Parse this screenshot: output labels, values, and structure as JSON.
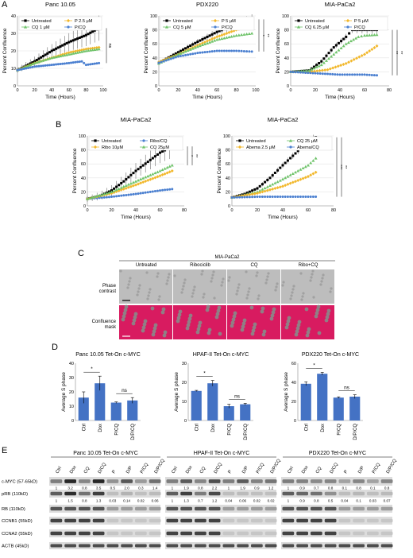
{
  "panels": {
    "A": "A",
    "B": "B",
    "C": "C",
    "D": "D",
    "E": "E"
  },
  "colors": {
    "untreated": "#000000",
    "palbo": "#f2b82c",
    "cq": "#6fc36a",
    "combo": "#4a7fd0",
    "bar": "#4472c4",
    "mask": "#d81b60",
    "phase_bg": "#bdbdbd"
  },
  "chart_data": [
    {
      "id": "A1",
      "type": "line",
      "title": "Panc 10.05",
      "xlabel": "Time (Hours)",
      "ylabel": "Percent Confluence",
      "xlim": [
        0,
        100
      ],
      "ylim": [
        0,
        40
      ],
      "xticks": [
        0,
        20,
        40,
        60,
        80,
        100
      ],
      "yticks": [
        0,
        10,
        20,
        30,
        40
      ],
      "legend": [
        "Untreated",
        "P 2.5 μM",
        "CQ 1 μM",
        "P/CQ"
      ],
      "series": [
        {
          "name": "Untreated",
          "x": [
            0,
            20,
            40,
            60,
            80,
            95
          ],
          "y": [
            9,
            14,
            20,
            25,
            29,
            33
          ]
        },
        {
          "name": "P 2.5 μM",
          "x": [
            0,
            20,
            40,
            60,
            80,
            95
          ],
          "y": [
            9,
            13,
            16,
            19,
            21,
            22
          ]
        },
        {
          "name": "CQ 1 μM",
          "x": [
            0,
            20,
            40,
            60,
            80,
            95
          ],
          "y": [
            9,
            13,
            16,
            18,
            20,
            21
          ]
        },
        {
          "name": "P/CQ",
          "x": [
            0,
            20,
            40,
            60,
            75,
            80,
            95
          ],
          "y": [
            9,
            11,
            12,
            13,
            14,
            12,
            13
          ]
        }
      ],
      "annotations": [
        "ns"
      ]
    },
    {
      "id": "A2",
      "type": "line",
      "title": "PDX220",
      "xlabel": "Time (Hours)",
      "ylabel": "Percent Confluence",
      "xlim": [
        0,
        100
      ],
      "ylim": [
        0,
        100
      ],
      "xticks": [
        0,
        20,
        40,
        60,
        80,
        100
      ],
      "yticks": [
        0,
        20,
        40,
        60,
        80,
        100
      ],
      "legend": [
        "Untreated",
        "P 5 μM",
        "CQ 5 μM",
        "P/CQ"
      ],
      "series": [
        {
          "name": "Untreated",
          "x": [
            0,
            20,
            40,
            60,
            80,
            96
          ],
          "y": [
            33,
            48,
            63,
            77,
            88,
            95
          ]
        },
        {
          "name": "P 5 μM",
          "x": [
            0,
            20,
            40,
            60,
            80,
            96
          ],
          "y": [
            34,
            45,
            58,
            70,
            80,
            86
          ]
        },
        {
          "name": "CQ 5 μM",
          "x": [
            0,
            20,
            40,
            60,
            80,
            96
          ],
          "y": [
            32,
            45,
            56,
            66,
            72,
            75
          ]
        },
        {
          "name": "P/CQ",
          "x": [
            0,
            20,
            40,
            60,
            80,
            96
          ],
          "y": [
            33,
            42,
            47,
            50,
            50,
            49
          ]
        }
      ],
      "annotations": [
        "*",
        "**"
      ]
    },
    {
      "id": "A3",
      "type": "line",
      "title": "MIA-PaCa2",
      "xlabel": "Time (Hours)",
      "ylabel": "Percent Confluence",
      "xlim": [
        0,
        80
      ],
      "ylim": [
        0,
        100
      ],
      "xticks": [
        0,
        20,
        40,
        60,
        80
      ],
      "yticks": [
        0,
        20,
        40,
        60,
        80,
        100
      ],
      "legend": [
        "Untreated",
        "P 5 μM",
        "CQ 6.25 μM",
        "P/CQ"
      ],
      "series": [
        {
          "name": "Untreated",
          "x": [
            0,
            15,
            25,
            35,
            45,
            50,
            60,
            70
          ],
          "y": [
            20,
            22,
            35,
            55,
            70,
            80,
            80,
            80
          ]
        },
        {
          "name": "P 5 μM",
          "x": [
            0,
            15,
            30,
            45,
            60,
            70
          ],
          "y": [
            20,
            20,
            23,
            32,
            45,
            57
          ]
        },
        {
          "name": "CQ 6.25 μM",
          "x": [
            0,
            15,
            25,
            35,
            45,
            55,
            60,
            70
          ],
          "y": [
            20,
            22,
            30,
            45,
            60,
            70,
            72,
            73
          ]
        },
        {
          "name": "P/CQ",
          "x": [
            0,
            20,
            40,
            60,
            70
          ],
          "y": [
            20,
            18,
            16,
            16,
            15
          ]
        }
      ],
      "annotations": [
        "**",
        "**"
      ]
    },
    {
      "id": "B1",
      "type": "line",
      "title": "MIA-PaCa2",
      "xlabel": "Time (Hours)",
      "ylabel": "Percent Confluence",
      "xlim": [
        0,
        80
      ],
      "ylim": [
        0,
        100
      ],
      "xticks": [
        0,
        20,
        40,
        60,
        80
      ],
      "yticks": [
        0,
        20,
        40,
        60,
        80,
        100
      ],
      "legend": [
        "Untreated",
        "Ribo/CQ",
        "Ribo 10μM",
        "CQ 25μM"
      ],
      "series": [
        {
          "name": "Untreated",
          "x": [
            0,
            10,
            20,
            30,
            40,
            50,
            60,
            70
          ],
          "y": [
            10,
            14,
            22,
            35,
            50,
            63,
            76,
            85
          ]
        },
        {
          "name": "Ribo/CQ",
          "x": [
            0,
            20,
            40,
            60,
            70
          ],
          "y": [
            10,
            13,
            17,
            22,
            24
          ]
        },
        {
          "name": "Ribo 10μM",
          "x": [
            0,
            20,
            40,
            60,
            70
          ],
          "y": [
            10,
            18,
            30,
            43,
            50
          ]
        },
        {
          "name": "CQ 25μM",
          "x": [
            0,
            20,
            40,
            60,
            70
          ],
          "y": [
            10,
            20,
            35,
            50,
            58
          ]
        }
      ],
      "annotations": [
        "*",
        "**"
      ]
    },
    {
      "id": "B2",
      "type": "line",
      "title": "MIA-PaCa2",
      "xlabel": "Time (Hours)",
      "ylabel": "Percent Confluence",
      "xlim": [
        0,
        80
      ],
      "ylim": [
        0,
        100
      ],
      "xticks": [
        0,
        20,
        40,
        60,
        80
      ],
      "yticks": [
        0,
        20,
        40,
        60,
        80,
        100
      ],
      "legend": [
        "Untreated",
        "CQ 25 μM",
        "Abema 2.5 μM",
        "Abema/CQ"
      ],
      "series": [
        {
          "name": "Untreated",
          "x": [
            0,
            10,
            20,
            30,
            40,
            50,
            60,
            66
          ],
          "y": [
            12,
            17,
            25,
            40,
            58,
            75,
            93,
            98
          ]
        },
        {
          "name": "CQ 25 μM",
          "x": [
            0,
            20,
            40,
            60,
            66
          ],
          "y": [
            12,
            20,
            38,
            58,
            68
          ]
        },
        {
          "name": "Abema 2.5 μM",
          "x": [
            0,
            20,
            40,
            60,
            66
          ],
          "y": [
            12,
            18,
            28,
            42,
            48
          ]
        },
        {
          "name": "Abema/CQ",
          "x": [
            0,
            20,
            40,
            60,
            66
          ],
          "y": [
            12,
            13,
            13,
            13,
            13
          ]
        }
      ],
      "annotations": [
        "***",
        "**"
      ]
    },
    {
      "id": "D1",
      "type": "bar",
      "title": "Panc 10.05 Tet-On c-MYC",
      "ylabel": "Average S phase",
      "ylim": [
        0,
        40
      ],
      "yticks": [
        0,
        10,
        20,
        30,
        40
      ],
      "categories": [
        "Ctrl",
        "Dox",
        "P/CQ",
        "D/P/CQ"
      ],
      "values": [
        16,
        26,
        12.5,
        14
      ],
      "errors": [
        4,
        5,
        0.5,
        2
      ],
      "annotations": [
        "*",
        "ns"
      ]
    },
    {
      "id": "D2",
      "type": "bar",
      "title": "HPAF-II Tet-On c-MYC",
      "ylabel": "Average S phase",
      "ylim": [
        0,
        30
      ],
      "yticks": [
        0,
        10,
        20,
        30
      ],
      "categories": [
        "Ctrl",
        "Dox",
        "P/CQ",
        "D/P/CQ"
      ],
      "values": [
        15.5,
        19.5,
        7.5,
        8.5
      ],
      "errors": [
        0.3,
        1.5,
        1,
        0.5
      ],
      "annotations": [
        "*",
        "ns"
      ]
    },
    {
      "id": "D3",
      "type": "bar",
      "title": "PDX220 Tet-On c-MYC",
      "ylabel": "Average S phase",
      "ylim": [
        0,
        60
      ],
      "yticks": [
        0,
        20,
        40,
        60
      ],
      "categories": [
        "Ctrl",
        "Dox",
        "P/CQ",
        "D/P/CQ"
      ],
      "values": [
        38.5,
        49,
        24,
        25
      ],
      "errors": [
        2,
        1.5,
        0.8,
        2
      ],
      "annotations": [
        "*",
        "ns"
      ]
    }
  ],
  "panel_c": {
    "cell_line": "MIA-PaCa2",
    "conditions": [
      "Untreated",
      "Ribociclib",
      "CQ",
      "Ribo+CQ"
    ],
    "rows": [
      "Phase contrast",
      "Confluence mask"
    ]
  },
  "panel_e": {
    "groups": [
      {
        "title": "Panc 10.05 Tet-On c-MYC",
        "lanes": [
          "Ctrl",
          "Dox",
          "CQ",
          "D/CQ",
          "P",
          "D/P",
          "P/CQ",
          "D/P/CQ"
        ],
        "myc_q": [
          "1",
          "3.2",
          "0.8",
          "3.5",
          "0.5",
          "2.0",
          "0.3",
          "1.4"
        ],
        "prb_q": [
          "1",
          "1.5",
          "0.8",
          "1.3",
          "0.03",
          "0.14",
          "0.02",
          "0.06"
        ]
      },
      {
        "title": "HPAF-II Tet-On c-MYC",
        "lanes": [
          "Ctrl",
          "Dox",
          "CQ",
          "D/CQ",
          "P",
          "D/P",
          "P/CQ",
          "D/P/CQ"
        ],
        "myc_q": [
          "1",
          "1.9",
          "0.8",
          "2.2",
          "1",
          "1.9",
          "0.9",
          "1.2"
        ],
        "prb_q": [
          "1",
          "1.3",
          "0.7",
          "1.2",
          "0.04",
          "0.06",
          "0.02",
          "0.02"
        ]
      },
      {
        "title": "PDX220 Tet-On c-MYC",
        "lanes": [
          "Ctrl",
          "Dox",
          "CQ",
          "D/CQ",
          "P",
          "D/P",
          "P/CQ",
          "D/P/CQ"
        ],
        "myc_q": [
          "1",
          "0.9",
          "0.7",
          "0.8",
          "0.1",
          "0.8",
          "0.1",
          "0.8"
        ],
        "prb_q": [
          "1",
          "0.9",
          "0.8",
          "0.5",
          "0.04",
          "0.1",
          "0.03",
          "0.07"
        ]
      }
    ],
    "row_labels": [
      "c-MYC (57-65kD)",
      "pRB (110kD)",
      "RB (110kD)",
      "CCNB1 (55kD)",
      "CCNA2 (55kD)",
      "ACTB (45kD)"
    ]
  }
}
